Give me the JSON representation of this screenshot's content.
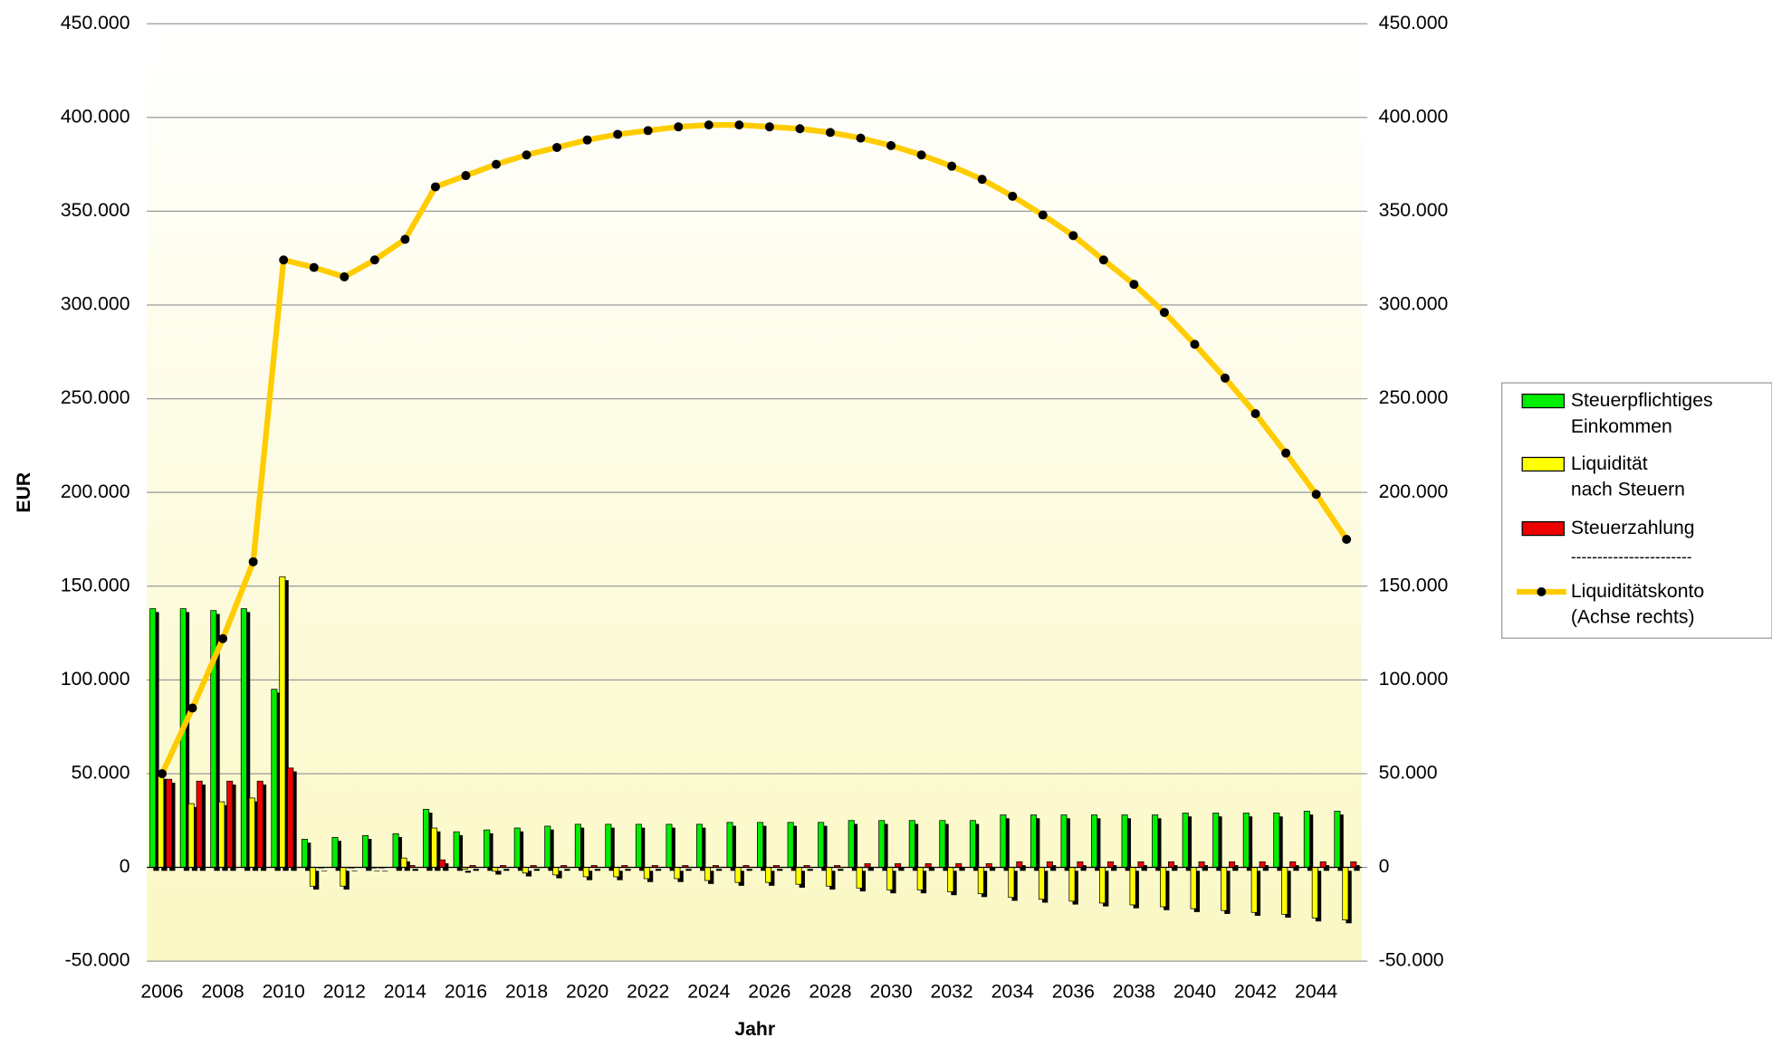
{
  "chart_data": {
    "type": "bar",
    "categories": [
      2006,
      null,
      2008,
      null,
      2010,
      null,
      2012,
      null,
      2014,
      null,
      2016,
      null,
      2018,
      null,
      2020,
      null,
      2022,
      null,
      2024,
      null,
      2026,
      null,
      2028,
      null,
      2030,
      null,
      2032,
      null,
      2034,
      null,
      2036,
      null,
      2038,
      null,
      2040,
      null,
      2042,
      null,
      2044,
      null
    ],
    "x_label": "Jahr",
    "y_label": "EUR",
    "ylim": [
      -50000,
      450000
    ],
    "yticks": [
      {
        "value": -50000,
        "label": "-50.000"
      },
      0,
      {
        "value": 50000,
        "label": "50.000"
      },
      {
        "value": 100000,
        "label": "100.000"
      },
      {
        "value": 150000,
        "label": "150.000"
      },
      {
        "value": 200000,
        "label": "200.000"
      },
      {
        "value": 250000,
        "label": "250.000"
      },
      {
        "value": 300000,
        "label": "300.000"
      },
      {
        "value": 350000,
        "label": "350.000"
      },
      {
        "value": 400000,
        "label": "400.000"
      },
      {
        "value": 450000,
        "label": "450.000"
      }
    ],
    "y2lim": [
      -50000,
      450000
    ],
    "y2ticks": [
      {
        "value": -50000,
        "label": "-50.000"
      },
      0,
      {
        "value": 50000,
        "label": "50.000"
      },
      {
        "value": 100000,
        "label": "100.000"
      },
      {
        "value": 150000,
        "label": "150.000"
      },
      {
        "value": 200000,
        "label": "200.000"
      },
      {
        "value": 250000,
        "label": "250.000"
      },
      {
        "value": 300000,
        "label": "300.000"
      },
      {
        "value": 350000,
        "label": "350.000"
      },
      {
        "value": 400000,
        "label": "400.000"
      },
      {
        "value": 450000,
        "label": "450.000"
      }
    ],
    "grid": true,
    "legend_separator": "-----------------------",
    "series": [
      {
        "name": "Steuerpflichtiges Einkommen",
        "color": "#00ee00",
        "type": "bar",
        "values": [
          138000,
          138000,
          137000,
          138000,
          95000,
          15000,
          16000,
          17000,
          18000,
          31000,
          19000,
          20000,
          21000,
          22000,
          23000,
          23000,
          23000,
          23000,
          23000,
          24000,
          24000,
          24000,
          24000,
          25000,
          25000,
          25000,
          25000,
          25000,
          28000,
          28000,
          28000,
          28000,
          28000,
          28000,
          29000,
          29000,
          29000,
          29000,
          30000,
          30000
        ]
      },
      {
        "name": "Liquidität nach Steuern",
        "color": "#ffff00",
        "type": "bar",
        "values": [
          49000,
          34000,
          35000,
          37000,
          155000,
          -10000,
          -10000,
          0,
          5000,
          21000,
          -1000,
          -2000,
          -3000,
          -4000,
          -5000,
          -5000,
          -6000,
          -6000,
          -7000,
          -8000,
          -8000,
          -9000,
          -10000,
          -11000,
          -12000,
          -12000,
          -13000,
          -14000,
          -16000,
          -17000,
          -18000,
          -19000,
          -20000,
          -21000,
          -22000,
          -23000,
          -24000,
          -25000,
          -27000,
          -28000
        ]
      },
      {
        "name": "Steuerzahlung",
        "color": "#ee0000",
        "type": "bar",
        "values": [
          47000,
          46000,
          46000,
          46000,
          53000,
          0,
          0,
          0,
          1000,
          4000,
          1000,
          1000,
          1000,
          1000,
          1000,
          1000,
          1000,
          1000,
          1000,
          1000,
          1000,
          1000,
          1000,
          2000,
          2000,
          2000,
          2000,
          2000,
          3000,
          3000,
          3000,
          3000,
          3000,
          3000,
          3000,
          3000,
          3000,
          3000,
          3000,
          3000
        ]
      },
      {
        "name": "Liquiditätskonto (Achse rechts)",
        "color": "#ffcc00",
        "type": "line",
        "axis": "y2",
        "values": [
          50000,
          85000,
          122000,
          163000,
          324000,
          320000,
          315000,
          324000,
          335000,
          363000,
          369000,
          375000,
          380000,
          384000,
          388000,
          391000,
          393000,
          395000,
          396000,
          396000,
          395000,
          394000,
          392000,
          389000,
          385000,
          380000,
          374000,
          367000,
          358000,
          348000,
          337000,
          324000,
          311000,
          296000,
          279000,
          261000,
          242000,
          221000,
          199000,
          175000
        ]
      }
    ]
  }
}
